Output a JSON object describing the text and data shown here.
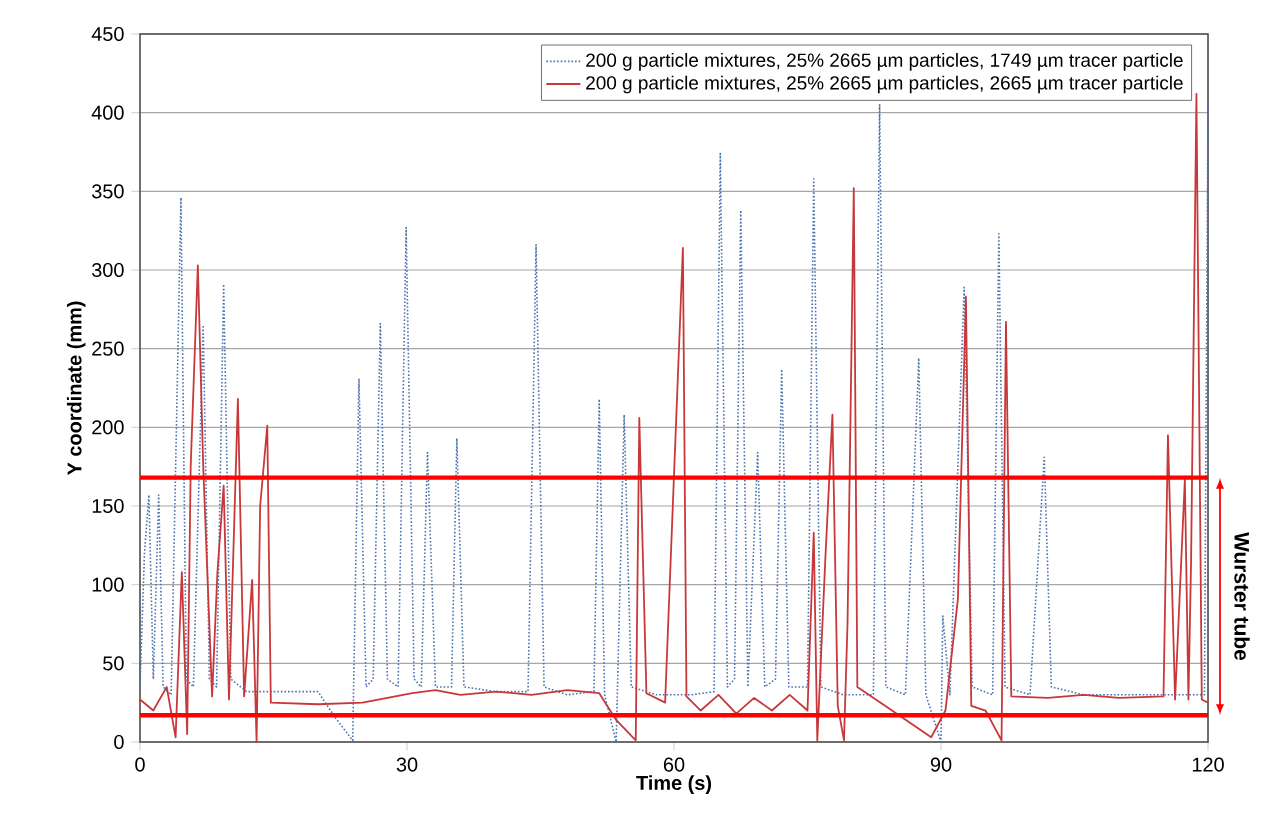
{
  "chart_data": {
    "type": "line",
    "xlabel": "Time (s)",
    "ylabel": "Y coordinate (mm)",
    "xlim": [
      0,
      120
    ],
    "ylim": [
      0,
      450
    ],
    "xticks": [
      0,
      30,
      60,
      90,
      120
    ],
    "yticks": [
      0,
      50,
      100,
      150,
      200,
      250,
      300,
      350,
      400,
      450
    ],
    "grid": "y",
    "legend": "top right",
    "marker": "none",
    "series": [
      {
        "name": "200 g particle mixtures, 25% 2665 µm particles, 1749 µm tracer particle",
        "color": "#4a72b0",
        "line_style": "dotted",
        "x": [
          0,
          0.5,
          1.0,
          1.5,
          2.1,
          2.6,
          3.5,
          4.6,
          5.2,
          6.0,
          7.1,
          7.8,
          8.6,
          9.4,
          10.2,
          12.0,
          14.0,
          17.0,
          20.0,
          22.0,
          23.9,
          24.6,
          25.4,
          26.2,
          27.0,
          27.8,
          29.0,
          29.9,
          30.8,
          31.6,
          32.3,
          33.2,
          35.0,
          35.6,
          36.4,
          40.0,
          43.6,
          44.5,
          45.4,
          48.0,
          51.0,
          51.6,
          52.2,
          53.5,
          54.4,
          55.2,
          58.0,
          62.0,
          64.5,
          65.2,
          66.0,
          66.8,
          67.5,
          68.3,
          69.4,
          70.2,
          71.4,
          72.1,
          72.9,
          75.0,
          75.7,
          76.5,
          79.0,
          82.4,
          83.1,
          83.8,
          86.0,
          87.5,
          88.3,
          90.0,
          90.2,
          91.0,
          92.6,
          93.5,
          95.8,
          96.5,
          97.2,
          100.0,
          101.6,
          102.4,
          106.0,
          110.0,
          114.0,
          117.0,
          119.6,
          120
        ],
        "values": [
          35,
          120,
          157,
          40,
          157,
          35,
          30,
          346,
          40,
          35,
          265,
          40,
          35,
          291,
          40,
          32,
          32,
          32,
          32,
          15,
          1,
          231,
          35,
          40,
          266,
          40,
          35,
          327,
          40,
          35,
          184,
          35,
          35,
          193,
          35,
          32,
          32,
          316,
          35,
          30,
          32,
          218,
          30,
          0,
          208,
          35,
          30,
          30,
          32,
          374,
          35,
          40,
          338,
          35,
          184,
          35,
          40,
          237,
          35,
          35,
          358,
          35,
          30,
          30,
          405,
          35,
          30,
          244,
          30,
          0,
          80,
          30,
          289,
          35,
          30,
          323,
          35,
          30,
          181,
          35,
          30,
          30,
          30,
          30,
          30,
          405
        ]
      },
      {
        "name": "200 g particle mixtures, 25% 2665 µm particles, 2665 µm tracer particle",
        "color": "#c8383a",
        "line_style": "solid",
        "x": [
          0,
          1.5,
          3.0,
          4.0,
          4.7,
          5.3,
          5.7,
          6.5,
          7.1,
          8.1,
          8.7,
          9.4,
          10.0,
          11.0,
          11.7,
          12.6,
          13.1,
          13.5,
          14.3,
          14.7,
          20.0,
          25.0,
          30.6,
          33.2,
          36.0,
          40.0,
          44.0,
          48.0,
          51.6,
          53.5,
          55.7,
          56.1,
          56.9,
          59.0,
          61.0,
          61.4,
          63.0,
          65.0,
          67.0,
          69.0,
          71.0,
          73.0,
          75.0,
          75.7,
          76.1,
          77.0,
          77.8,
          78.4,
          79.1,
          79.5,
          80.2,
          80.6,
          84.0,
          88.9,
          90.5,
          91.9,
          92.8,
          93.4,
          95.0,
          96.8,
          97.3,
          97.9,
          102.0,
          106.0,
          110.0,
          115.0,
          115.5,
          116.3,
          117.4,
          117.8,
          118.1,
          118.7,
          119.3,
          120
        ],
        "values": [
          27,
          20,
          35,
          3,
          108,
          5,
          176,
          303,
          176,
          29,
          108,
          163,
          27,
          218,
          29,
          103,
          0,
          150,
          201,
          25,
          24,
          25,
          31,
          33,
          30,
          32,
          30,
          33,
          31,
          14,
          1,
          206,
          31,
          25,
          314,
          29,
          20,
          30,
          18,
          28,
          20,
          30,
          20,
          133,
          1,
          116,
          208,
          23,
          1,
          76,
          352,
          35,
          22,
          3,
          20,
          91,
          283,
          23,
          20,
          1,
          267,
          29,
          28,
          30,
          28,
          29,
          195,
          27,
          167,
          27,
          116,
          412,
          27,
          25
        ]
      }
    ],
    "ref_lines": [
      {
        "axis": "y",
        "value": 168,
        "color": "#ff0000"
      },
      {
        "axis": "y",
        "value": 17,
        "color": "#ff0000"
      }
    ],
    "annotations": [
      "Wurster tube"
    ]
  }
}
